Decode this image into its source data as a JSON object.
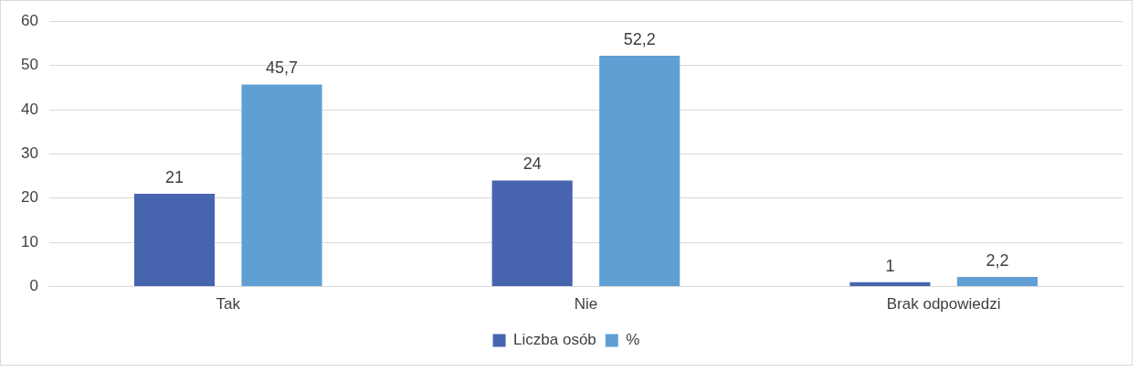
{
  "chart_data": {
    "type": "bar",
    "categories": [
      "Tak",
      "Nie",
      "Brak odpowiedzi"
    ],
    "series": [
      {
        "name": "Liczba osób",
        "color": "#4765ae",
        "values": [
          21,
          24,
          1
        ],
        "value_labels": [
          "21",
          "24",
          "1"
        ]
      },
      {
        "name": "%",
        "color": "#5f9fd4",
        "values": [
          45.7,
          52.2,
          2.2
        ],
        "value_labels": [
          "45,7",
          "52,2",
          "2,2"
        ]
      }
    ],
    "ylim": [
      0,
      60
    ],
    "yticks": [
      0,
      10,
      20,
      30,
      40,
      50,
      60
    ],
    "grid": "y",
    "legend": "bottom"
  }
}
